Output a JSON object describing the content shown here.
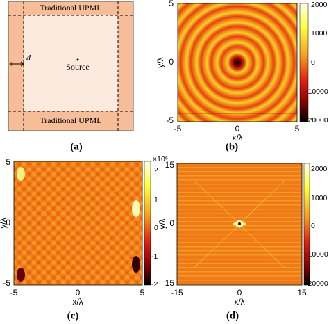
{
  "panels": [
    {
      "label": "(a)",
      "top_label": "Traditional UPML",
      "bottom_label": "Traditional UPML",
      "d_label": "d",
      "source_label": "Source"
    },
    {
      "label": "(b)",
      "x_label": "x/λ",
      "y_label": "y/λ",
      "xticks": [
        "-5",
        "0",
        "5"
      ],
      "yticks": [
        "5",
        "0",
        "-5"
      ],
      "colorbar_ticks": [
        "2000",
        "1000",
        "0",
        "-10000",
        "-20000"
      ]
    },
    {
      "label": "(c)",
      "x_label": "x/λ",
      "y_label": "y/λ",
      "xticks": [
        "-5",
        "0",
        "5"
      ],
      "yticks": [
        "5",
        "0",
        "-5"
      ],
      "colorbar_exponent": "×10⁶",
      "colorbar_ticks": [
        "2",
        "1",
        "0",
        "-1",
        "-2"
      ]
    },
    {
      "label": "(d)",
      "x_label": "x/λ",
      "y_label": "y/λ",
      "xticks": [
        "-15",
        "0",
        "15"
      ],
      "yticks": [
        "15",
        "0",
        "15"
      ],
      "colorbar_ticks": [
        "2000",
        "1000",
        "0",
        "-10000",
        "-20000"
      ]
    }
  ]
}
